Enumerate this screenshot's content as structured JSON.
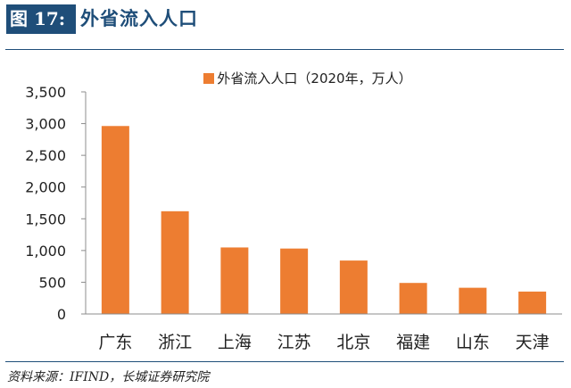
{
  "figure": {
    "label": "图 17:",
    "title": "外省流入人口"
  },
  "source": "资料来源：IFIND，长城证券研究院",
  "colors": {
    "bar": "#ed7d31",
    "header_blue": "#1f4e79"
  },
  "chart_data": {
    "type": "bar",
    "categories": [
      "广东",
      "浙江",
      "上海",
      "江苏",
      "北京",
      "福建",
      "山东",
      "天津"
    ],
    "series": [
      {
        "name": "外省流入人口（2020年，万人）",
        "values": [
          2962,
          1619,
          1048,
          1031,
          842,
          489,
          413,
          353
        ]
      }
    ],
    "y_ticks": [
      "0",
      "500",
      "1,000",
      "1,500",
      "2,000",
      "2,500",
      "3,000",
      "3,500"
    ],
    "ylim": [
      0,
      3500
    ],
    "grid": false,
    "legend": "top-center"
  }
}
